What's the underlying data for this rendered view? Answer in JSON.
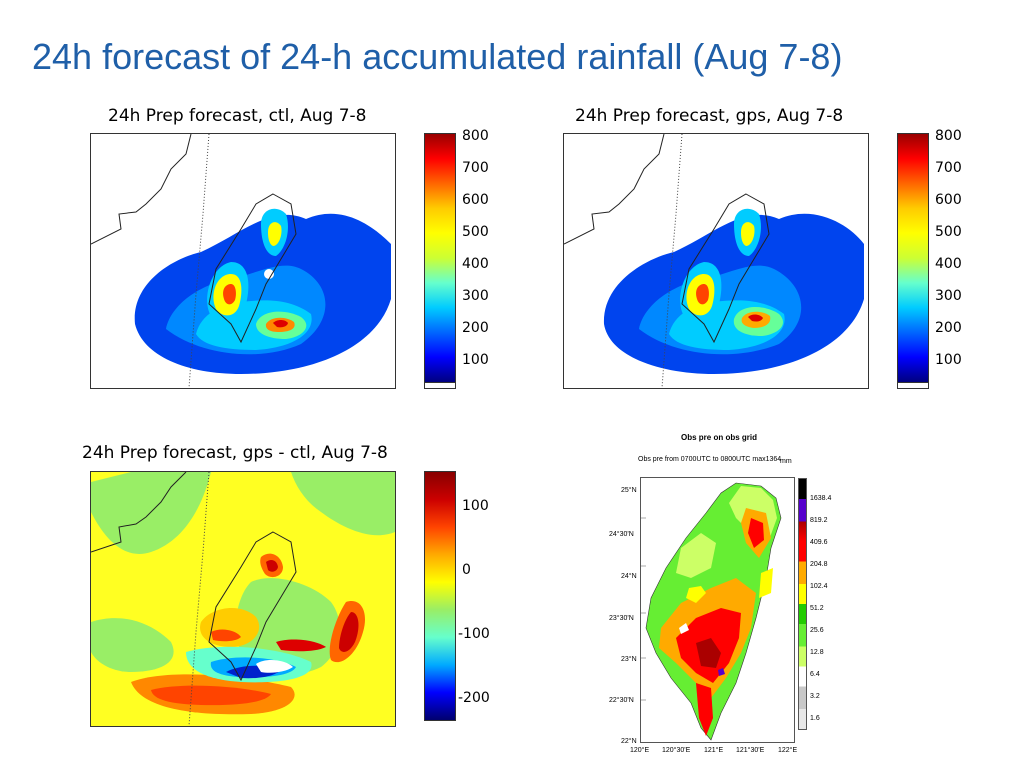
{
  "slide": {
    "title": "24h forecast of 24-h accumulated rainfall (Aug 7-8)"
  },
  "panels": {
    "ctl": {
      "title": "24h Prep forecast, ctl, Aug 7-8",
      "colorbar_ticks": [
        "800",
        "700",
        "600",
        "500",
        "400",
        "300",
        "200",
        "100"
      ]
    },
    "gps": {
      "title": "24h Prep forecast, gps, Aug 7-8",
      "colorbar_ticks": [
        "800",
        "700",
        "600",
        "500",
        "400",
        "300",
        "200",
        "100"
      ]
    },
    "diff": {
      "title": "24h Prep forecast, gps - ctl, Aug 7-8",
      "colorbar_ticks": [
        "100",
        "0",
        "-100",
        "-200"
      ]
    },
    "obs": {
      "title": "Obs pre on obs grid",
      "subtitle": "Obs pre from 0700UTC to 0800UTC  max1364",
      "unit": "mm",
      "lat_labels": [
        "25°N",
        "24°30'N",
        "24°N",
        "23°30'N",
        "23°N",
        "22°30'N",
        "22°N"
      ],
      "lon_labels": [
        "120°E",
        "120°30'E",
        "121°E",
        "121°30'E",
        "122°E"
      ],
      "legend_values": [
        "1638.4",
        "819.2",
        "409.6",
        "204.8",
        "102.4",
        "51.2",
        "25.6",
        "12.8",
        "6.4",
        "3.2",
        "1.6"
      ]
    }
  },
  "colors": {
    "title": "#1f5fa8",
    "rain_scale": [
      "#000080",
      "#0000ff",
      "#0066ff",
      "#00ccff",
      "#66ffcc",
      "#ccff33",
      "#ffff00",
      "#ffcc00",
      "#ff6600",
      "#ff0000",
      "#cc0000",
      "#990000"
    ],
    "diff_scale": [
      "#00006e",
      "#0000ff",
      "#00aaff",
      "#66ffcc",
      "#ffff00",
      "#ffaa00",
      "#ff4400",
      "#cc0000",
      "#880000"
    ],
    "obs_scale": [
      "#e8e8e8",
      "#c8c8c8",
      "#ffffff",
      "#ccff66",
      "#66ee33",
      "#22cc00",
      "#ffff00",
      "#ffaa00",
      "#ff0000",
      "#aa0000",
      "#5500cc",
      "#000000"
    ]
  }
}
